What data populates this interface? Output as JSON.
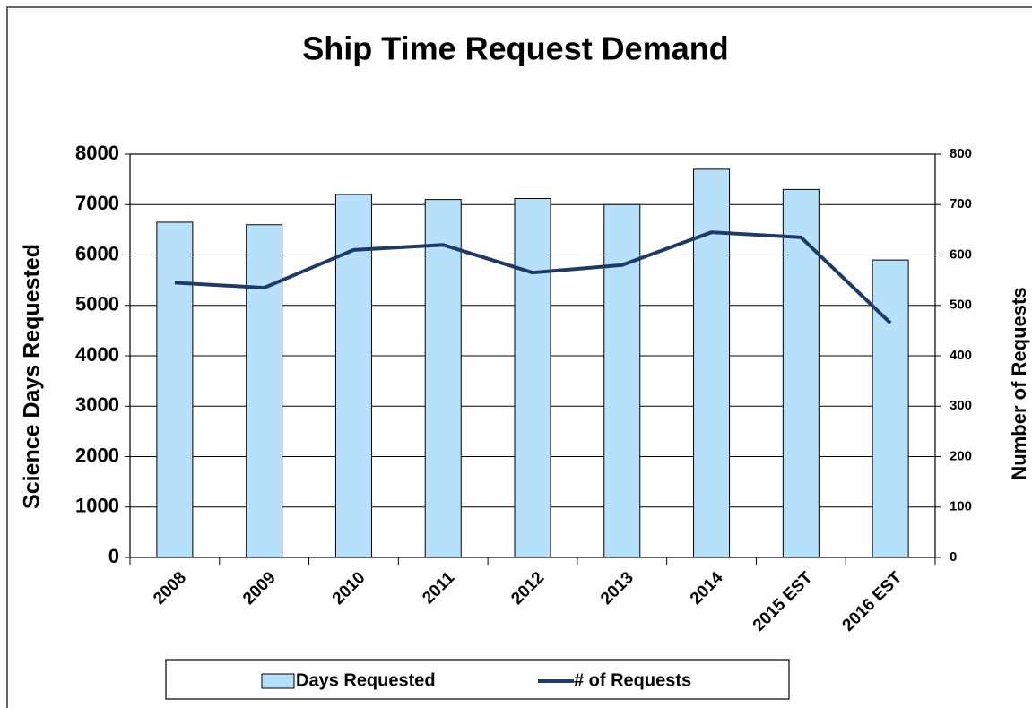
{
  "chart_data": {
    "type": "bar",
    "title": "Ship Time Request Demand",
    "y_label": "Science Days Requested",
    "y2_label": "Number of Requests",
    "categories": [
      "2008",
      "2009",
      "2010",
      "2011",
      "2012",
      "2013",
      "2014",
      "2015 EST",
      "2016 EST"
    ],
    "series": [
      {
        "name": "Days Requested",
        "type": "bar",
        "color": "#b7e1fa",
        "values": [
          6650,
          6600,
          7200,
          7100,
          7120,
          7000,
          7700,
          7300,
          5900
        ]
      },
      {
        "name": "# of Requests",
        "type": "line",
        "axis": "y2",
        "color": "#1f3a68",
        "values": [
          545,
          535,
          610,
          620,
          565,
          580,
          645,
          635,
          465
        ]
      }
    ],
    "ylim": [
      0,
      8000
    ],
    "yticks": [
      0,
      1000,
      2000,
      3000,
      4000,
      5000,
      6000,
      7000,
      8000
    ],
    "y2lim": [
      0,
      800
    ],
    "y2ticks": [
      0,
      100,
      200,
      300,
      400,
      500,
      600,
      700,
      800
    ],
    "grid": true,
    "legend": "bottom"
  }
}
